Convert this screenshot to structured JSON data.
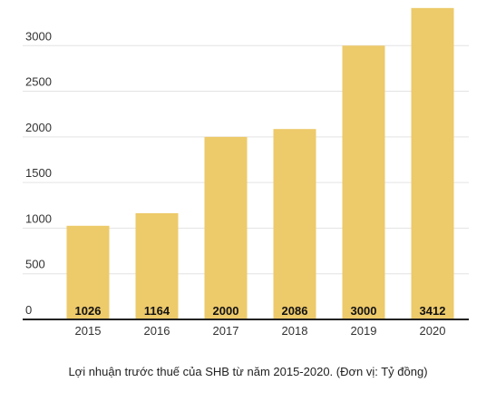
{
  "chart_data": {
    "type": "bar",
    "title": "",
    "xlabel": "",
    "ylabel": "",
    "categories": [
      "2015",
      "2016",
      "2017",
      "2018",
      "2019",
      "2020"
    ],
    "values": [
      1026,
      1164,
      2000,
      2086,
      3000,
      3412
    ],
    "data_labels": [
      "1026",
      "1164",
      "2000",
      "2086",
      "3000",
      "3412"
    ],
    "ylim": [
      0,
      3450
    ],
    "y_ticks": [
      0,
      500,
      1000,
      1500,
      2000,
      2500,
      3000
    ],
    "y_tick_labels": [
      "0",
      "500",
      "1000",
      "1500",
      "2000",
      "2500",
      "3000"
    ],
    "grid": true,
    "bar_color": "#EDCA6A",
    "grid_color": "#E3E3E3",
    "axis_color": "#222222"
  },
  "caption": "Lợi nhuận trước thuế của SHB từ năm 2015-2020. (Đơn vị: Tỷ đồng)"
}
